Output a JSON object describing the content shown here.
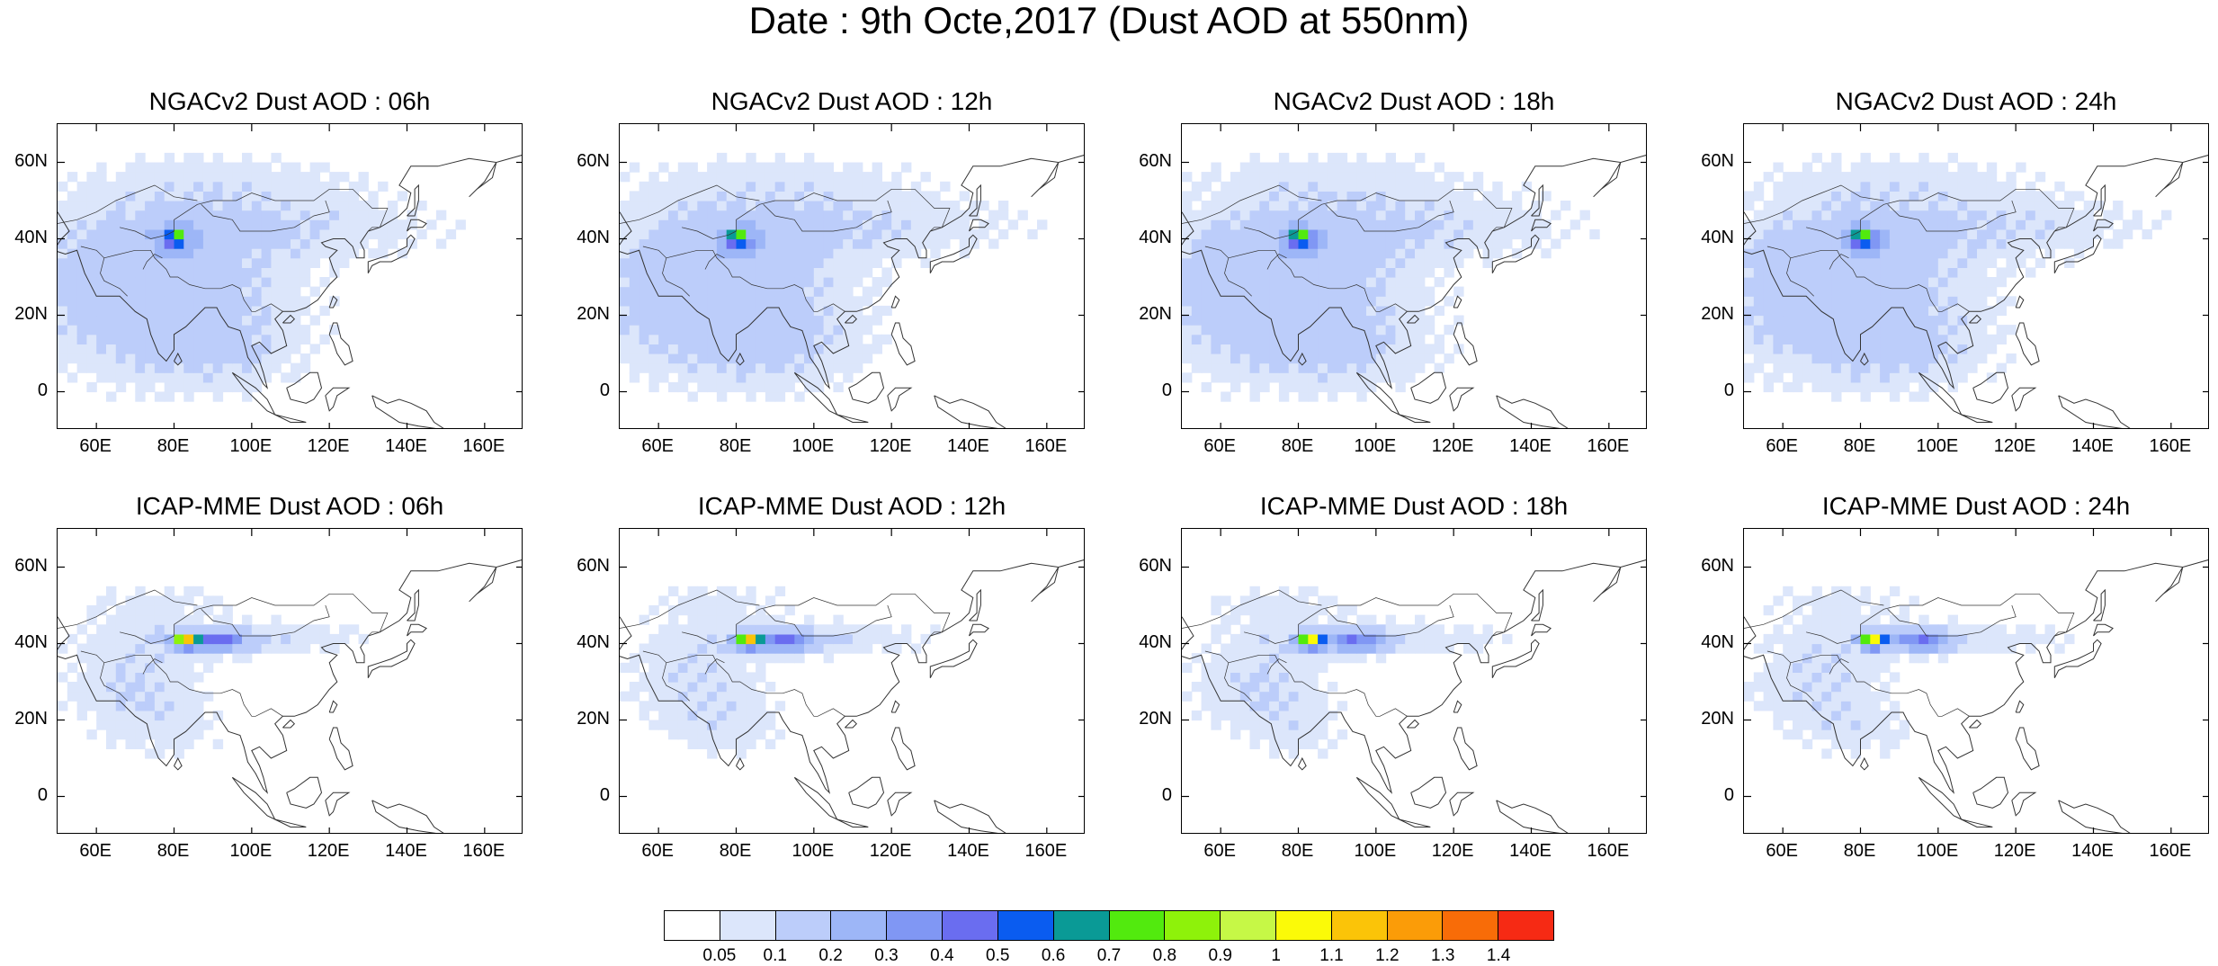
{
  "title": "Date : 9th Octe,2017 (Dust AOD at 550nm)",
  "lat_labels": [
    "60N",
    "40N",
    "20N",
    "0"
  ],
  "lon_labels": [
    "60E",
    "80E",
    "100E",
    "120E",
    "140E",
    "160E"
  ],
  "map_extent": {
    "lon_min": 50,
    "lon_max": 170,
    "lat_min": -10,
    "lat_max": 70
  },
  "panels": [
    {
      "title": "NGACv2 Dust AOD : 06h",
      "model": "NGACv2",
      "hour": "06h"
    },
    {
      "title": "NGACv2 Dust AOD : 12h",
      "model": "NGACv2",
      "hour": "12h"
    },
    {
      "title": "NGACv2 Dust AOD : 18h",
      "model": "NGACv2",
      "hour": "18h"
    },
    {
      "title": "NGACv2 Dust AOD : 24h",
      "model": "NGACv2",
      "hour": "24h"
    },
    {
      "title": "ICAP-MME Dust AOD : 06h",
      "model": "ICAP-MME",
      "hour": "06h"
    },
    {
      "title": "ICAP-MME Dust AOD : 12h",
      "model": "ICAP-MME",
      "hour": "12h"
    },
    {
      "title": "ICAP-MME Dust AOD : 18h",
      "model": "ICAP-MME",
      "hour": "18h"
    },
    {
      "title": "ICAP-MME Dust AOD : 24h",
      "model": "ICAP-MME",
      "hour": "24h"
    }
  ],
  "colorbar": {
    "labels": [
      "0.05",
      "0.1",
      "0.2",
      "0.3",
      "0.4",
      "0.5",
      "0.6",
      "0.7",
      "0.8",
      "0.9",
      "1",
      "1.1",
      "1.2",
      "1.3",
      "1.4"
    ],
    "colors": [
      "#ffffff",
      "#dce6fb",
      "#bccdfa",
      "#9db6f7",
      "#8097f4",
      "#6a6df0",
      "#0a5cf0",
      "#0a9a96",
      "#52ea0e",
      "#8ef20a",
      "#c6f846",
      "#fbfa08",
      "#fbc408",
      "#fb9c08",
      "#f86c08",
      "#f62a14"
    ]
  }
}
